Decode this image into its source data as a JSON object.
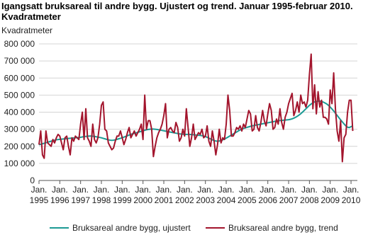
{
  "chart_data": {
    "type": "line",
    "title": "Igangsatt bruksareal til andre bygg. Ujustert og trend. Januar 1995-februar 2010.",
    "subtitle": "Kvadratmeter",
    "y_label": "Kvadratmeter",
    "categories": [
      "Jan. 1995",
      null,
      null,
      null,
      null,
      null,
      null,
      null,
      null,
      null,
      null,
      null,
      "Jan. 1996",
      null,
      null,
      null,
      null,
      null,
      null,
      null,
      null,
      null,
      null,
      null,
      "Jan. 1997",
      null,
      null,
      null,
      null,
      null,
      null,
      null,
      null,
      null,
      null,
      null,
      "Jan. 1998",
      null,
      null,
      null,
      null,
      null,
      null,
      null,
      null,
      null,
      null,
      null,
      "Jan. 1999",
      null,
      null,
      null,
      null,
      null,
      null,
      null,
      null,
      null,
      null,
      null,
      "Jan. 2000",
      null,
      null,
      null,
      null,
      null,
      null,
      null,
      null,
      null,
      null,
      null,
      "Jan. 2001",
      null,
      null,
      null,
      null,
      null,
      null,
      null,
      null,
      null,
      null,
      null,
      "Jan. 2002",
      null,
      null,
      null,
      null,
      null,
      null,
      null,
      null,
      null,
      null,
      null,
      "Jan. 2003",
      null,
      null,
      null,
      null,
      null,
      null,
      null,
      null,
      null,
      null,
      null,
      "Jan. 2004",
      null,
      null,
      null,
      null,
      null,
      null,
      null,
      null,
      null,
      null,
      null,
      "Jan. 2005",
      null,
      null,
      null,
      null,
      null,
      null,
      null,
      null,
      null,
      null,
      null,
      "Jan. 2006",
      null,
      null,
      null,
      null,
      null,
      null,
      null,
      null,
      null,
      null,
      null,
      "Jan. 2007",
      null,
      null,
      null,
      null,
      null,
      null,
      null,
      null,
      null,
      null,
      null,
      "Jan. 2008",
      null,
      null,
      null,
      null,
      null,
      null,
      null,
      null,
      null,
      null,
      null,
      "Jan. 2009",
      null,
      null,
      null,
      null,
      null,
      null,
      null,
      null,
      null,
      null,
      null,
      "Jan. 2010",
      null
    ],
    "series": [
      {
        "name": "Bruksareal andre bygg, ujustert",
        "color": "#1c9a94",
        "values": [
          210000,
          212000,
          215000,
          218000,
          221000,
          224000,
          227000,
          230000,
          233000,
          236000,
          238000,
          240000,
          241000,
          242000,
          243000,
          244000,
          245000,
          246000,
          247000,
          248000,
          249000,
          250000,
          251000,
          252000,
          253000,
          255000,
          257000,
          258000,
          259000,
          260000,
          260000,
          259000,
          258000,
          256000,
          254000,
          252000,
          250000,
          247000,
          244000,
          241000,
          238000,
          236000,
          235000,
          236000,
          238000,
          241000,
          244000,
          247000,
          250000,
          254000,
          258000,
          262000,
          266000,
          270000,
          273000,
          276000,
          279000,
          282000,
          285000,
          288000,
          291000,
          294000,
          297000,
          299000,
          300000,
          301000,
          301000,
          300000,
          299000,
          297000,
          295000,
          293000,
          291000,
          289000,
          287000,
          285000,
          283000,
          281000,
          279000,
          277000,
          275000,
          273000,
          272000,
          271000,
          270000,
          270000,
          270000,
          270000,
          269000,
          268000,
          267000,
          266000,
          265000,
          264000,
          262000,
          260000,
          257000,
          253000,
          248000,
          243000,
          238000,
          234000,
          231000,
          230000,
          231000,
          234000,
          238000,
          243000,
          248000,
          254000,
          260000,
          266000,
          272000,
          278000,
          284000,
          290000,
          296000,
          301000,
          305000,
          308000,
          311000,
          314000,
          317000,
          320000,
          322000,
          324000,
          326000,
          328000,
          330000,
          332000,
          334000,
          336000,
          338000,
          340000,
          342000,
          344000,
          346000,
          348000,
          350000,
          351000,
          352000,
          353000,
          354000,
          355000,
          356000,
          358000,
          361000,
          365000,
          370000,
          376000,
          383000,
          391000,
          400000,
          410000,
          420000,
          430000,
          440000,
          448000,
          455000,
          460000,
          463000,
          465000,
          465000,
          463000,
          459000,
          454000,
          448000,
          440000,
          430000,
          419000,
          407000,
          394000,
          381000,
          368000,
          355000,
          343000,
          331000,
          320000,
          312000,
          310000,
          315000,
          320000
        ]
      },
      {
        "name": "Bruksareal andre bygg, trend",
        "color": "#a3152d",
        "values": [
          210000,
          290000,
          150000,
          130000,
          290000,
          220000,
          210000,
          200000,
          240000,
          220000,
          250000,
          270000,
          260000,
          220000,
          180000,
          250000,
          260000,
          200000,
          150000,
          250000,
          230000,
          260000,
          250000,
          240000,
          330000,
          400000,
          240000,
          420000,
          250000,
          230000,
          200000,
          330000,
          240000,
          220000,
          250000,
          330000,
          440000,
          460000,
          300000,
          290000,
          220000,
          200000,
          180000,
          190000,
          230000,
          260000,
          260000,
          290000,
          250000,
          210000,
          240000,
          280000,
          310000,
          250000,
          270000,
          290000,
          260000,
          280000,
          300000,
          330000,
          240000,
          500000,
          300000,
          350000,
          350000,
          300000,
          140000,
          200000,
          250000,
          280000,
          300000,
          330000,
          380000,
          450000,
          250000,
          300000,
          310000,
          290000,
          280000,
          340000,
          310000,
          230000,
          250000,
          300000,
          260000,
          420000,
          310000,
          200000,
          250000,
          330000,
          240000,
          260000,
          280000,
          270000,
          300000,
          250000,
          260000,
          320000,
          230000,
          200000,
          290000,
          230000,
          150000,
          210000,
          300000,
          220000,
          250000,
          240000,
          330000,
          500000,
          410000,
          260000,
          260000,
          280000,
          310000,
          300000,
          320000,
          290000,
          330000,
          310000,
          360000,
          410000,
          390000,
          290000,
          300000,
          380000,
          310000,
          290000,
          340000,
          410000,
          350000,
          320000,
          390000,
          450000,
          410000,
          300000,
          310000,
          360000,
          330000,
          420000,
          340000,
          300000,
          370000,
          400000,
          450000,
          480000,
          510000,
          380000,
          410000,
          460000,
          400000,
          500000,
          450000,
          460000,
          430000,
          470000,
          620000,
          740000,
          420000,
          560000,
          390000,
          520000,
          430000,
          470000,
          370000,
          370000,
          360000,
          330000,
          530000,
          450000,
          630000,
          420000,
          290000,
          230000,
          350000,
          110000,
          250000,
          270000,
          400000,
          470000,
          470000,
          290000
        ]
      }
    ],
    "ylim": [
      0,
      800000
    ],
    "yticks": [
      {
        "value": 0,
        "label": "0"
      },
      {
        "value": 100000,
        "label": "100 000"
      },
      {
        "value": 200000,
        "label": "200 000"
      },
      {
        "value": 300000,
        "label": "300 000"
      },
      {
        "value": 400000,
        "label": "400 000"
      },
      {
        "value": 500000,
        "label": "500 000"
      },
      {
        "value": 600000,
        "label": "600 000"
      },
      {
        "value": 700000,
        "label": "700 000"
      },
      {
        "value": 800000,
        "label": "800 000"
      }
    ],
    "grid": true
  }
}
